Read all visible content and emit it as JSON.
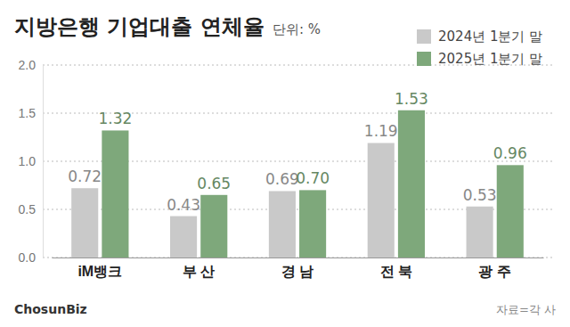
{
  "chart_data": {
    "type": "bar",
    "title": "지방은행 기업대출 연체율",
    "subtitle": "단위: %",
    "categories": [
      "iM뱅크",
      "부 산",
      "경 남",
      "전 북",
      "광 주"
    ],
    "series": [
      {
        "name": "2024년 1분기 말",
        "color": "#c9c9c9",
        "values": [
          0.72,
          0.43,
          0.69,
          1.19,
          0.53
        ],
        "value_labels": [
          "0.72",
          "0.43",
          "0.69",
          "1.19",
          "0.53"
        ]
      },
      {
        "name": "2025년 1분기 말",
        "color": "#7ea87b",
        "values": [
          1.32,
          0.65,
          0.7,
          1.53,
          0.96
        ],
        "value_labels": [
          "1.32",
          "0.65",
          "0.70",
          "1.53",
          "0.96"
        ]
      }
    ],
    "ylim": [
      0,
      2
    ],
    "yticks": [
      {
        "value": 0,
        "label": "0.0"
      },
      0.5,
      {
        "value": 1,
        "label": "1.0"
      },
      1.5,
      {
        "value": 2,
        "label": "2.0"
      }
    ],
    "grid": true,
    "data_labels": true,
    "legend": "top-right",
    "credit": "ChosunBiz",
    "source": "자료=각 사"
  }
}
